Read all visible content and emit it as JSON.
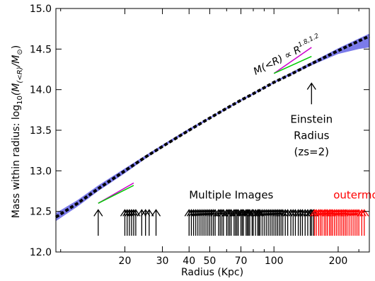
{
  "chart_data": {
    "type": "line",
    "title": "",
    "xlabel": "Radius (Kpc)",
    "ylabel_prefix": "Mass within radius: log",
    "ylabel_sub": "10",
    "ylabel_math": "(M",
    "ylabel_math_sub": "(<R)",
    "ylabel_math_tail": "/M",
    "ylabel_sun_symbol": "⊙",
    "ylabel_close": ")",
    "x_scale": "log",
    "xlim": [
      9.5,
      280
    ],
    "ylim": [
      12.0,
      15.0
    ],
    "x_ticks": [
      20,
      30,
      40,
      50,
      70,
      100,
      200
    ],
    "x_tick_labels": [
      "20",
      "30",
      "40",
      "50",
      "70",
      "100",
      "200"
    ],
    "y_ticks": [
      12.0,
      12.5,
      13.0,
      13.5,
      14.0,
      14.5,
      15.0
    ],
    "y_tick_labels": [
      "12.0",
      "12.5",
      "13.0",
      "13.5",
      "14.0",
      "14.5",
      "15.0"
    ],
    "grid": false,
    "series": [
      {
        "style": "dashed-black-line",
        "x": [
          9.5,
          12,
          15,
          20,
          25,
          30,
          40,
          50,
          60,
          70,
          80,
          100,
          120,
          150,
          200,
          250,
          280
        ],
        "y": [
          12.43,
          12.6,
          12.78,
          13.0,
          13.17,
          13.3,
          13.5,
          13.65,
          13.77,
          13.87,
          13.95,
          14.09,
          14.19,
          14.32,
          14.48,
          14.6,
          14.66
        ]
      }
    ],
    "band": {
      "color": "#7b7bea",
      "x": [
        9.5,
        12,
        15,
        20,
        25,
        30,
        40,
        50,
        60,
        70,
        80,
        100,
        120,
        150,
        200,
        250,
        280
      ],
      "y_low": [
        12.38,
        12.56,
        12.75,
        12.97,
        13.15,
        13.29,
        13.49,
        13.64,
        13.76,
        13.86,
        13.94,
        14.08,
        14.18,
        14.3,
        14.44,
        14.5,
        14.52
      ],
      "y_high": [
        12.48,
        12.64,
        12.82,
        13.03,
        13.19,
        13.32,
        13.52,
        13.66,
        13.78,
        13.88,
        13.96,
        14.1,
        14.21,
        14.34,
        14.51,
        14.63,
        14.69
      ]
    },
    "slope_lines": [
      {
        "color": "#cc00cc",
        "x": [
          15,
          22
        ],
        "y": [
          12.6,
          12.85
        ]
      },
      {
        "color": "#00cc00",
        "x": [
          15,
          22
        ],
        "y": [
          12.6,
          12.82
        ]
      },
      {
        "color": "#cc00cc",
        "x": [
          100,
          150
        ],
        "y": [
          14.2,
          14.52
        ]
      },
      {
        "color": "#00cc00",
        "x": [
          100,
          150
        ],
        "y": [
          14.2,
          14.41
        ]
      }
    ],
    "slope_label": {
      "text": "M(<R) ∝ R",
      "superscript": "1.8,1.2",
      "x": 82,
      "y": 14.18
    },
    "einstein": {
      "x": 150,
      "arrow_y": [
        13.82,
        14.08
      ],
      "label_lines": [
        "Einstein",
        "Radius",
        "(zs=2)"
      ]
    },
    "multiple_images": {
      "label": "Multiple Images",
      "label_x": 40,
      "label_y": 12.66,
      "arrow_base": 12.2,
      "arrow_top": 12.52,
      "x": [
        15,
        20,
        20.5,
        21,
        21.5,
        22,
        22.5,
        24,
        25,
        26,
        28,
        40,
        41,
        42,
        43,
        44,
        45,
        46,
        47,
        48,
        49,
        50,
        51,
        52,
        53,
        55,
        56,
        57,
        58,
        60,
        61,
        62,
        63,
        65,
        66,
        67,
        68,
        70,
        71,
        72,
        74,
        75,
        76,
        77,
        79,
        80,
        82,
        84,
        85,
        86,
        88,
        90,
        92,
        94,
        96,
        98,
        100,
        102,
        104,
        106,
        108,
        110,
        113,
        116,
        120,
        123,
        126,
        130,
        133,
        136,
        140,
        144,
        148,
        150,
        153
      ]
    },
    "outermost": {
      "label": "outermost",
      "color": "#ff0000",
      "label_x": 190,
      "label_y": 12.66,
      "x": [
        155,
        158,
        162,
        165,
        168,
        172,
        175,
        178,
        182,
        185,
        188,
        192,
        196,
        200,
        204,
        208,
        212,
        216,
        220,
        225,
        230,
        235,
        240,
        245,
        250,
        258,
        265
      ]
    }
  }
}
